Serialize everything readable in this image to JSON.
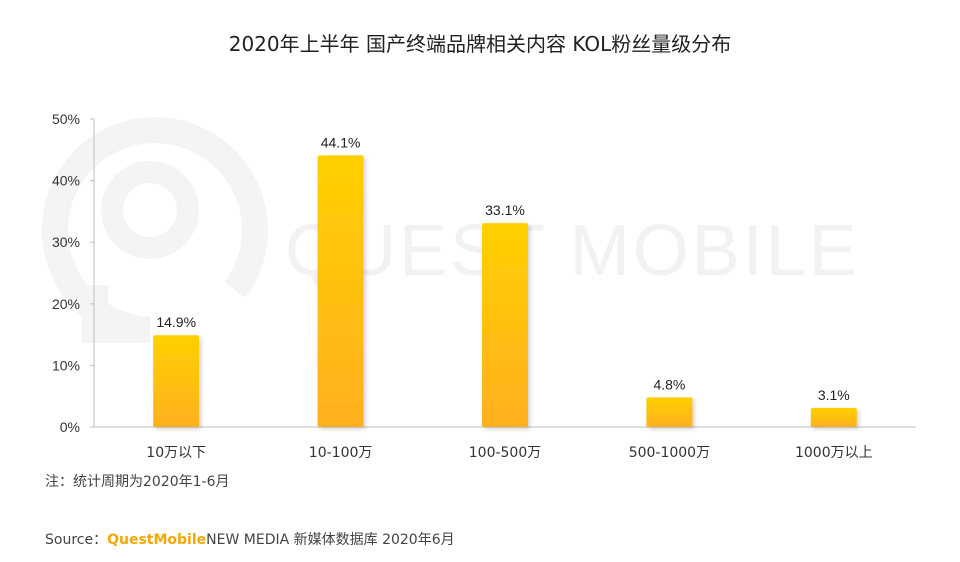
{
  "chart_data": {
    "type": "bar",
    "title": "2020年上半年 国产终端品牌相关内容 KOL粉丝量级分布",
    "categories": [
      "10万以下",
      "10-100万",
      "100-500万",
      "500-1000万",
      "1000万以上"
    ],
    "values": [
      14.9,
      44.1,
      33.1,
      4.8,
      3.1
    ],
    "value_labels": [
      "14.9%",
      "44.1%",
      "33.1%",
      "4.8%",
      "3.1%"
    ],
    "ylim": [
      0,
      50
    ],
    "yticks": [
      "0%",
      "10%",
      "20%",
      "30%",
      "40%",
      "50%"
    ],
    "xlabel": "",
    "ylabel": "",
    "grid": false,
    "legend": "none",
    "bar_gradient": [
      "#FFD000",
      "#FFB020"
    ]
  },
  "note": "注：统计周期为2020年1-6月",
  "source": {
    "prefix": "Source：",
    "brand": "QuestMobile",
    "rest": "NEW MEDIA 新媒体数据库 2020年6月",
    "brand_color": "#F5A800"
  },
  "watermark": {
    "text": "QUEST MOBILE",
    "icon": "questmobile-logo-icon"
  }
}
